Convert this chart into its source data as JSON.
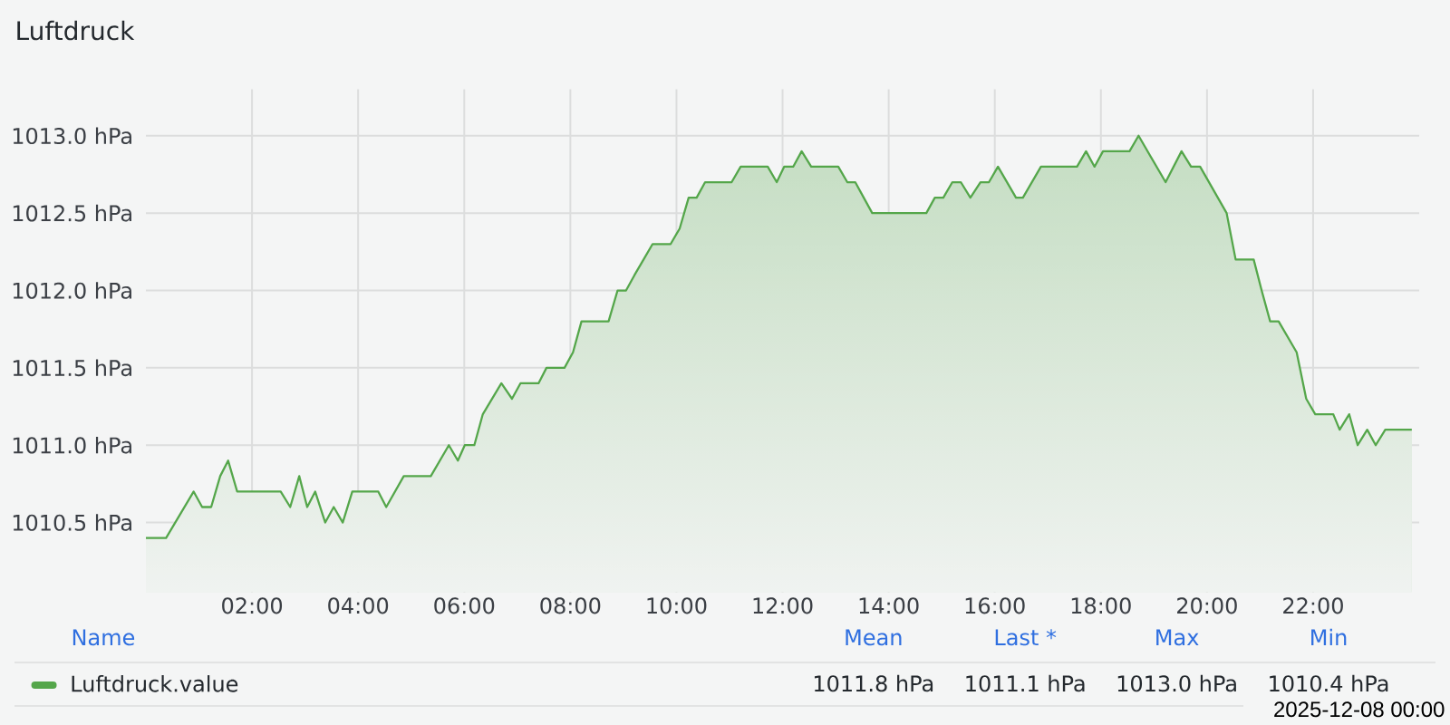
{
  "chart_data": {
    "type": "area",
    "title": "Luftdruck",
    "legend_title": "Name",
    "x": [
      0.0,
      0.38,
      0.9,
      1.06,
      1.23,
      1.4,
      1.55,
      1.72,
      2.54,
      2.72,
      2.89,
      3.04,
      3.19,
      3.38,
      3.54,
      3.71,
      3.89,
      4.38,
      4.53,
      4.86,
      5.37,
      5.71,
      5.88,
      6.01,
      6.19,
      6.35,
      6.7,
      6.9,
      7.06,
      7.4,
      7.55,
      7.89,
      8.05,
      8.21,
      8.72,
      8.89,
      9.05,
      9.21,
      9.38,
      9.55,
      9.89,
      10.06,
      10.23,
      10.38,
      10.54,
      11.04,
      11.21,
      11.72,
      11.89,
      12.03,
      12.2,
      12.36,
      12.54,
      13.05,
      13.22,
      13.37,
      13.53,
      13.69,
      14.71,
      14.87,
      15.03,
      15.2,
      15.36,
      15.54,
      15.73,
      15.89,
      16.06,
      16.4,
      16.53,
      16.87,
      17.55,
      17.72,
      17.88,
      18.04,
      18.54,
      18.71,
      19.22,
      19.52,
      19.7,
      19.87,
      20.37,
      20.54,
      20.88,
      21.03,
      21.19,
      21.35,
      21.69,
      21.87,
      22.04,
      22.38,
      22.5,
      22.68,
      22.84,
      23.02,
      23.18,
      23.36,
      23.86
    ],
    "series": [
      {
        "name": "Luftdruck.value",
        "color": "#54a64a",
        "values": [
          1010.4,
          1010.4,
          1010.7,
          1010.6,
          1010.6,
          1010.8,
          1010.9,
          1010.7,
          1010.7,
          1010.6,
          1010.8,
          1010.6,
          1010.7,
          1010.5,
          1010.6,
          1010.5,
          1010.7,
          1010.7,
          1010.6,
          1010.8,
          1010.8,
          1011.0,
          1010.9,
          1011.0,
          1011.0,
          1011.2,
          1011.4,
          1011.3,
          1011.4,
          1011.4,
          1011.5,
          1011.5,
          1011.6,
          1011.8,
          1011.8,
          1012.0,
          1012.0,
          1012.1,
          1012.2,
          1012.3,
          1012.3,
          1012.4,
          1012.6,
          1012.6,
          1012.7,
          1012.7,
          1012.8,
          1012.8,
          1012.7,
          1012.8,
          1012.8,
          1012.9,
          1012.8,
          1012.8,
          1012.7,
          1012.7,
          1012.6,
          1012.5,
          1012.5,
          1012.6,
          1012.6,
          1012.7,
          1012.7,
          1012.6,
          1012.7,
          1012.7,
          1012.8,
          1012.6,
          1012.6,
          1012.8,
          1012.8,
          1012.9,
          1012.8,
          1012.9,
          1012.9,
          1013.0,
          1012.7,
          1012.9,
          1012.8,
          1012.8,
          1012.5,
          1012.2,
          1012.2,
          1012.0,
          1011.8,
          1011.8,
          1011.6,
          1011.3,
          1011.2,
          1011.2,
          1011.1,
          1011.2,
          1011.0,
          1011.1,
          1011.0,
          1011.1,
          1011.1
        ]
      }
    ],
    "xlim": [
      0,
      24
    ],
    "xticks": [
      {
        "value": 2,
        "label": "02:00"
      },
      {
        "value": 4,
        "label": "04:00"
      },
      {
        "value": 6,
        "label": "06:00"
      },
      {
        "value": 8,
        "label": "08:00"
      },
      {
        "value": 10,
        "label": "10:00"
      },
      {
        "value": 12,
        "label": "12:00"
      },
      {
        "value": 14,
        "label": "14:00"
      },
      {
        "value": 16,
        "label": "16:00"
      },
      {
        "value": 18,
        "label": "18:00"
      },
      {
        "value": 20,
        "label": "20:00"
      },
      {
        "value": 22,
        "label": "22:00"
      }
    ],
    "ylim": [
      1010.05,
      1013.3
    ],
    "yticks": [
      {
        "value": 1010.5,
        "label": "1010.5 hPa"
      },
      {
        "value": 1011.0,
        "label": "1011.0 hPa"
      },
      {
        "value": 1011.5,
        "label": "1011.5 hPa"
      },
      {
        "value": 1012.0,
        "label": "1012.0 hPa"
      },
      {
        "value": 1012.5,
        "label": "1012.5 hPa"
      },
      {
        "value": 1013.0,
        "label": "1013.0 hPa"
      }
    ],
    "grid": true,
    "legend": "bottom",
    "annotations": [
      "Mean",
      "Last *",
      "Max",
      "Min",
      "1011.8 hPa",
      "1011.1 hPa",
      "1013.0 hPa",
      "1010.4 hPa",
      "2025-12-08 00:00"
    ]
  }
}
